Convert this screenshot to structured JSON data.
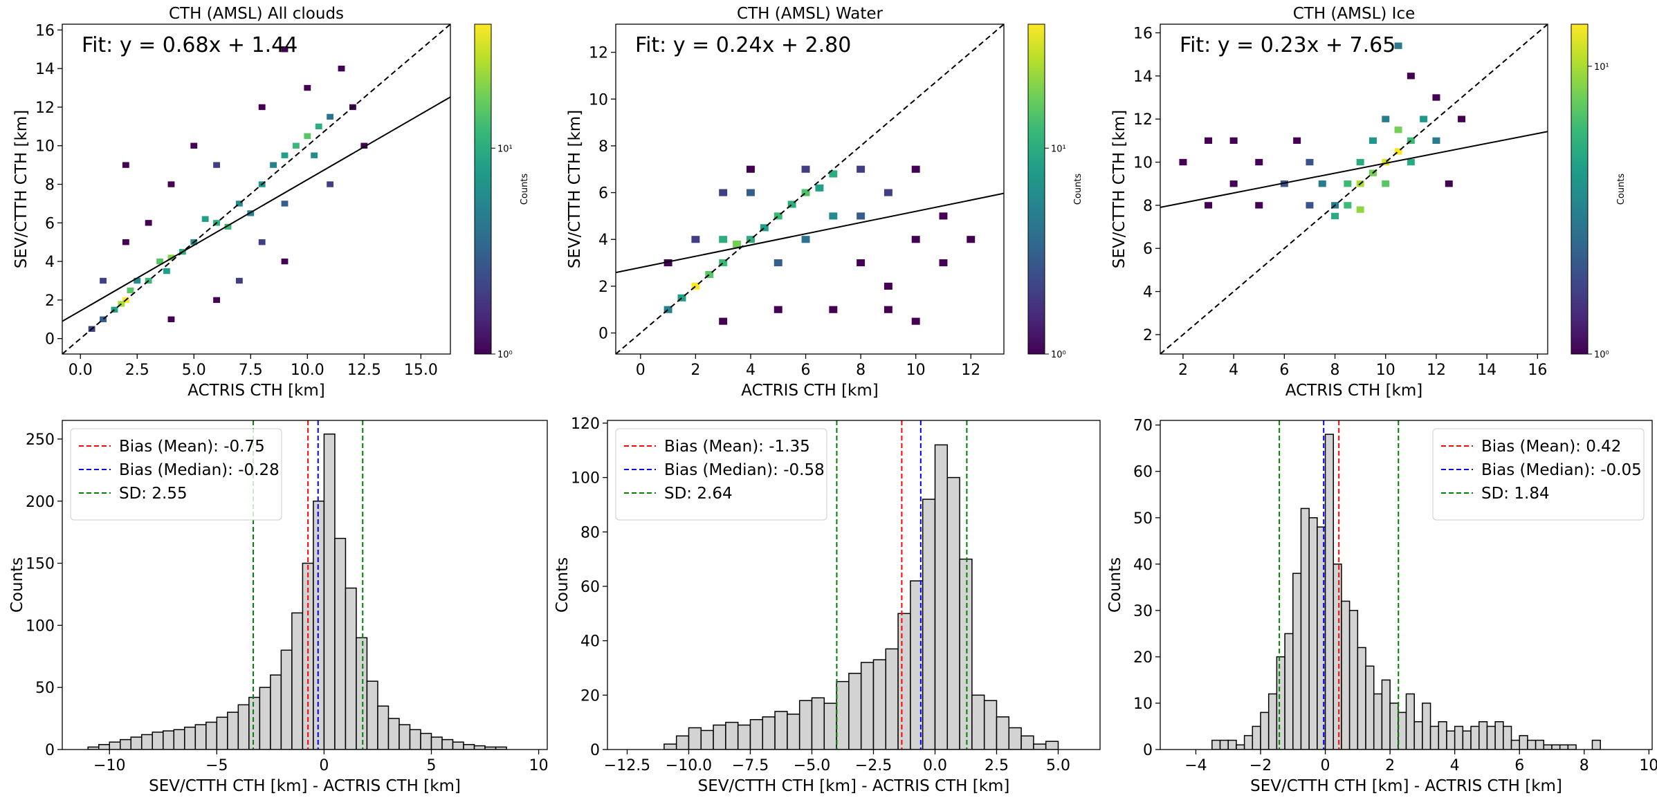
{
  "chart_data": [
    {
      "type": "heatmap",
      "title": "CTH (AMSL) All clouds",
      "xlabel": "ACTRIS CTH [km]",
      "ylabel": "SEV/CTTH CTH [km]",
      "xlim": [
        -0.8,
        16.3
      ],
      "ylim": [
        -0.8,
        16.3
      ],
      "xticks": [
        {
          "value": 0,
          "label": "0.0"
        },
        2.5,
        {
          "value": 5,
          "label": "5.0"
        },
        7.5,
        {
          "value": 10,
          "label": "10.0"
        },
        12.5,
        {
          "value": 15,
          "label": "15.0"
        }
      ],
      "yticks": [
        0,
        2,
        4,
        6,
        8,
        10,
        12,
        14,
        16
      ],
      "fit": {
        "slope": 0.68,
        "intercept": 1.44,
        "label": "Fit: y = 0.68x + 1.44"
      },
      "colormap": "viridis",
      "log_color": true,
      "clim": [
        1,
        40
      ],
      "colorbar_label": "Counts",
      "cticks": [
        {
          "value": 1,
          "label": "10⁰"
        },
        {
          "value": 10,
          "label": "10¹"
        }
      ],
      "cells": {
        "x": [
          2,
          1.8,
          2.2,
          1.5,
          1,
          0.5,
          3,
          3.5,
          4,
          4.5,
          3.8,
          2.5,
          5,
          6,
          6.5,
          5.5,
          7,
          7.5,
          8,
          8.5,
          9,
          9.5,
          10,
          10.5,
          10.3,
          11,
          9,
          8,
          6,
          4,
          3,
          2,
          7,
          9,
          11,
          12,
          10,
          11.5,
          9,
          5,
          1,
          4,
          6,
          12.5,
          8,
          2
        ],
        "y": [
          2,
          1.8,
          2.5,
          1.5,
          1,
          0.5,
          3,
          4,
          4.2,
          4.5,
          3.5,
          3,
          5,
          6,
          5.8,
          6.2,
          7,
          6.5,
          8,
          9,
          9.5,
          10,
          10.5,
          11,
          9.5,
          11.5,
          7,
          5,
          9,
          8,
          6,
          5,
          3,
          4,
          8,
          12,
          13,
          14,
          15,
          10,
          3,
          1,
          2,
          10,
          12,
          9
        ],
        "values": [
          40,
          25,
          15,
          8,
          3,
          2,
          12,
          15,
          20,
          10,
          8,
          6,
          6,
          10,
          12,
          8,
          6,
          5,
          7,
          5,
          8,
          12,
          15,
          10,
          6,
          4,
          3,
          2,
          2,
          1,
          1,
          1,
          2,
          1,
          2,
          1,
          1,
          1,
          1,
          1,
          2,
          1,
          1,
          1,
          1,
          1
        ]
      }
    },
    {
      "type": "heatmap",
      "title": "CTH (AMSL) Water",
      "xlabel": "ACTRIS CTH [km]",
      "ylabel": "SEV/CTTH CTH [km]",
      "xlim": [
        -0.9,
        13.2
      ],
      "ylim": [
        -0.9,
        13.2
      ],
      "xticks": [
        0,
        2,
        4,
        6,
        8,
        10,
        12
      ],
      "yticks": [
        0,
        2,
        4,
        6,
        8,
        10,
        12
      ],
      "fit": {
        "slope": 0.24,
        "intercept": 2.8,
        "label": "Fit: y = 0.24x + 2.80"
      },
      "colormap": "viridis",
      "log_color": true,
      "clim": [
        1,
        40
      ],
      "colorbar_label": "Counts",
      "cticks": [
        {
          "value": 1,
          "label": "10⁰"
        },
        {
          "value": 10,
          "label": "10¹"
        }
      ],
      "cells": {
        "x": [
          2,
          1,
          1.5,
          2.5,
          3,
          3.5,
          3,
          4,
          4.5,
          5,
          5.5,
          6,
          6.5,
          7,
          7,
          6,
          5,
          8,
          8,
          9,
          10,
          11,
          9,
          10,
          7,
          4,
          3,
          2,
          1,
          4,
          6,
          8,
          10,
          11,
          12,
          5,
          3,
          9
        ],
        "y": [
          2,
          1,
          1.5,
          2.5,
          3,
          3.8,
          4,
          4,
          4.5,
          5,
          5.5,
          6,
          6.2,
          6.8,
          5,
          4,
          3,
          5,
          7,
          6,
          4,
          3,
          1,
          0.5,
          1,
          6,
          6,
          4,
          3,
          7,
          7,
          3,
          7,
          5,
          4,
          1,
          0.5,
          2
        ],
        "values": [
          40,
          5,
          8,
          15,
          12,
          18,
          10,
          10,
          8,
          12,
          10,
          14,
          8,
          10,
          6,
          4,
          3,
          3,
          2,
          2,
          1,
          1,
          1,
          1,
          1,
          3,
          2,
          2,
          1,
          1,
          2,
          1,
          1,
          1,
          1,
          1,
          1,
          1
        ]
      }
    },
    {
      "type": "heatmap",
      "title": "CTH (AMSL) Ice",
      "xlabel": "ACTRIS CTH [km]",
      "ylabel": "SEV/CTTH CTH [km]",
      "xlim": [
        1.1,
        16.4
      ],
      "ylim": [
        1.1,
        16.4
      ],
      "xticks": [
        2,
        4,
        6,
        8,
        10,
        12,
        14,
        16
      ],
      "yticks": [
        2,
        4,
        6,
        8,
        10,
        12,
        14,
        16
      ],
      "fit": {
        "slope": 0.23,
        "intercept": 7.65,
        "label": "Fit: y = 0.23x + 7.65"
      },
      "colormap": "viridis",
      "log_color": true,
      "clim": [
        1,
        14
      ],
      "colorbar_label": "Counts",
      "cticks": [
        {
          "value": 1,
          "label": "10⁰"
        },
        {
          "value": 10,
          "label": "10¹"
        }
      ],
      "cells": {
        "x": [
          9,
          10,
          10.5,
          9.5,
          8.5,
          10,
          11,
          11,
          10.5,
          9,
          8,
          8,
          8.5,
          9,
          7.5,
          7,
          6,
          5,
          4,
          3,
          2,
          3,
          5,
          11.5,
          12,
          12,
          11,
          10.5,
          13,
          12.5,
          10,
          9.5,
          6.5,
          7,
          4
        ],
        "y": [
          9,
          10,
          10.5,
          9.5,
          9,
          9,
          11,
          10,
          11.5,
          10,
          8,
          7.5,
          8,
          7.8,
          9,
          10,
          9,
          10,
          9,
          8,
          10,
          11,
          8,
          12,
          11,
          13,
          14,
          15.4,
          12,
          9,
          12,
          11,
          11,
          8,
          11
        ],
        "values": [
          10,
          12,
          14,
          8,
          6,
          7,
          6,
          5,
          8,
          5,
          3,
          5,
          6,
          9,
          3,
          2,
          2,
          1,
          1,
          1,
          1,
          1,
          1,
          4,
          3,
          1,
          1,
          3,
          1,
          1,
          3,
          4,
          1,
          2,
          1
        ]
      }
    },
    {
      "type": "histogram",
      "xlabel": "SEV/CTTH CTH [km] - ACTRIS CTH [km]",
      "ylabel": "Counts",
      "xlim": [
        -12.2,
        10.4
      ],
      "ylim": [
        0,
        265
      ],
      "xticks": [
        {
          "value": -10,
          "label": "−10"
        },
        {
          "value": -5,
          "label": "−5"
        },
        0,
        5,
        10
      ],
      "yticks": [
        0,
        50,
        100,
        150,
        200,
        250
      ],
      "color": "#d3d3d3",
      "legend": "upper left",
      "bins": [
        -11,
        -10.5,
        -10,
        -9.5,
        -9,
        -8.5,
        -8,
        -7.5,
        -7,
        -6.5,
        -6,
        -5.5,
        -5,
        -4.5,
        -4,
        -3.5,
        -3,
        -2.5,
        -2,
        -1.5,
        -1,
        -0.5,
        0,
        0.5,
        1,
        1.5,
        2,
        2.5,
        3,
        3.5,
        4,
        4.5,
        5,
        5.5,
        6,
        6.5,
        7,
        7.5,
        8,
        8.5
      ],
      "values": [
        2,
        4,
        6,
        8,
        10,
        12,
        14,
        15,
        16,
        18,
        20,
        22,
        26,
        30,
        36,
        42,
        50,
        60,
        80,
        110,
        150,
        200,
        254,
        170,
        130,
        90,
        55,
        35,
        25,
        20,
        16,
        13,
        10,
        8,
        6,
        4,
        3,
        2,
        2
      ],
      "series": [
        {
          "name": "Bias (Mean): -0.75",
          "color": "red",
          "values": [
            -0.75
          ]
        },
        {
          "name": "Bias (Median): -0.28",
          "color": "blue",
          "values": [
            -0.28
          ]
        },
        {
          "name": "SD: 2.55",
          "color": "green",
          "values": [
            -3.3,
            1.8
          ]
        }
      ]
    },
    {
      "type": "histogram",
      "xlabel": "SEV/CTTH CTH [km] - ACTRIS CTH [km]",
      "ylabel": "Counts",
      "xlim": [
        -13.3,
        6.7
      ],
      "ylim": [
        0,
        121
      ],
      "xticks": [
        {
          "value": -12.5,
          "label": "−12.5"
        },
        {
          "value": -10,
          "label": "−10.0"
        },
        {
          "value": -7.5,
          "label": "−7.5"
        },
        {
          "value": -5,
          "label": "−5.0"
        },
        {
          "value": -2.5,
          "label": "−2.5"
        },
        {
          "value": 0,
          "label": "0.0"
        },
        2.5,
        {
          "value": 5,
          "label": "5.0"
        }
      ],
      "yticks": [
        0,
        20,
        40,
        60,
        80,
        100,
        120
      ],
      "color": "#d3d3d3",
      "legend": "upper left",
      "bins": [
        -11,
        -10.5,
        -10,
        -9.5,
        -9,
        -8.5,
        -8,
        -7.5,
        -7,
        -6.5,
        -6,
        -5.5,
        -5,
        -4.5,
        -4,
        -3.5,
        -3,
        -2.5,
        -2,
        -1.5,
        -1,
        -0.5,
        0,
        0.5,
        1,
        1.5,
        2,
        2.5,
        3,
        3.5,
        4,
        4.5,
        5
      ],
      "values": [
        2,
        5,
        8,
        7,
        9,
        10,
        9,
        11,
        12,
        14,
        13,
        18,
        19,
        17,
        25,
        28,
        32,
        33,
        37,
        50,
        62,
        92,
        112,
        100,
        70,
        20,
        18,
        12,
        8,
        5,
        2,
        3
      ],
      "series": [
        {
          "name": "Bias (Mean): -1.35",
          "color": "red",
          "values": [
            -1.35
          ]
        },
        {
          "name": "Bias (Median): -0.58",
          "color": "blue",
          "values": [
            -0.58
          ]
        },
        {
          "name": "SD: 2.64",
          "color": "green",
          "values": [
            -3.99,
            1.29
          ]
        }
      ]
    },
    {
      "type": "histogram",
      "xlabel": "SEV/CTTH CTH [km] - ACTRIS CTH [km]",
      "ylabel": "Counts",
      "xlim": [
        -5.1,
        10.1
      ],
      "ylim": [
        0,
        71
      ],
      "xticks": [
        {
          "value": -4,
          "label": "−4"
        },
        {
          "value": -2,
          "label": "−2"
        },
        0,
        2,
        4,
        6,
        8,
        10
      ],
      "yticks": [
        0,
        10,
        20,
        30,
        40,
        50,
        60,
        70
      ],
      "color": "#d3d3d3",
      "legend": "upper right",
      "bins": [
        -3.5,
        -3.25,
        -3,
        -2.75,
        -2.5,
        -2.25,
        -2,
        -1.75,
        -1.5,
        -1.25,
        -1,
        -0.75,
        -0.5,
        -0.25,
        0,
        0.25,
        0.5,
        0.75,
        1,
        1.25,
        1.5,
        1.75,
        2,
        2.25,
        2.5,
        2.75,
        3,
        3.25,
        3.5,
        3.75,
        4,
        4.25,
        4.5,
        4.75,
        5,
        5.25,
        5.5,
        5.75,
        6,
        6.25,
        6.5,
        6.75,
        7,
        7.25,
        7.5,
        7.75,
        8,
        8.25,
        8.5
      ],
      "values": [
        2,
        2,
        2,
        1,
        3,
        5,
        8,
        12,
        20,
        25,
        38,
        52,
        50,
        48,
        68,
        40,
        32,
        30,
        22,
        18,
        12,
        15,
        10,
        8,
        12,
        6,
        10,
        5,
        6,
        4,
        5,
        4,
        5,
        6,
        5,
        6,
        5,
        2,
        3,
        2,
        2,
        1,
        1,
        1,
        1,
        0,
        0,
        2
      ],
      "series": [
        {
          "name": "Bias (Mean): 0.42",
          "color": "red",
          "values": [
            0.42
          ]
        },
        {
          "name": "Bias (Median): -0.05",
          "color": "blue",
          "values": [
            -0.05
          ]
        },
        {
          "name": "SD: 1.84",
          "color": "green",
          "values": [
            -1.42,
            2.26
          ]
        }
      ]
    }
  ]
}
